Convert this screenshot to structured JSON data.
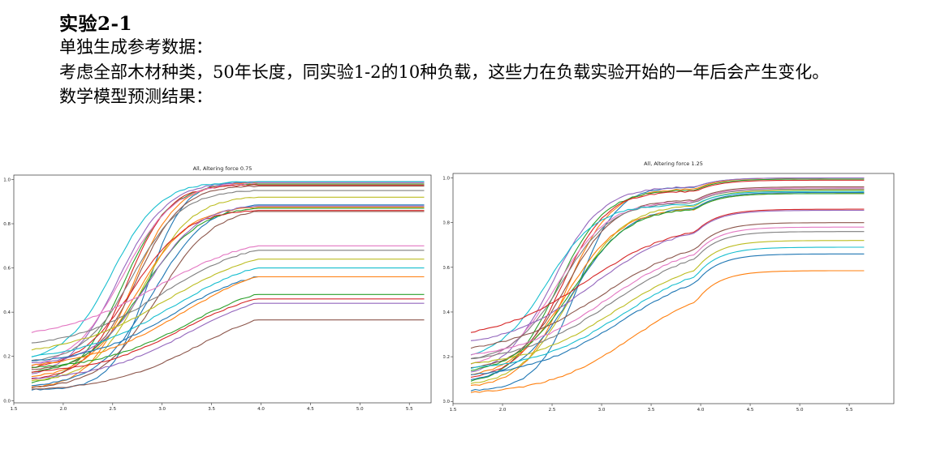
{
  "text": {
    "heading": "实验2-1",
    "line1": "单独生成参考数据：",
    "line2": "考虑全部木材种类，50年长度，同实验1-2的10种负载，这些力在负载实验开始的一年后会产生变化。",
    "line3": "数学模型预测结果："
  },
  "palette": [
    "#1f77b4",
    "#ff7f0e",
    "#2ca02c",
    "#d62728",
    "#9467bd",
    "#8c564b",
    "#e377c2",
    "#7f7f7f",
    "#bcbd22",
    "#17becf"
  ],
  "chart_data": [
    {
      "type": "line",
      "title": "All, Altering force 0.75",
      "xlabel": "",
      "ylabel": "",
      "xlim": [
        1.5,
        5.72
      ],
      "ylim": [
        -0.01,
        1.02
      ],
      "xticks": [
        "1.5",
        "2.0",
        "2.5",
        "3.0",
        "3.5",
        "4.0",
        "4.5",
        "5.0",
        "5.5"
      ],
      "yticks": [
        "0.0",
        "0.2",
        "0.4",
        "0.6",
        "0.8",
        "1.0"
      ],
      "x_start": 1.68,
      "x_end": 5.65,
      "step_x": 3.95,
      "legend": "none",
      "grid": false,
      "series": [
        {
          "start": 0.05,
          "final": 0.99,
          "mid": 2.85,
          "k": 5.5
        },
        {
          "start": 0.06,
          "final": 0.985,
          "mid": 2.7,
          "k": 4.5
        },
        {
          "start": 0.08,
          "final": 0.98,
          "mid": 2.6,
          "k": 4.2
        },
        {
          "start": 0.1,
          "final": 0.975,
          "mid": 2.65,
          "k": 4.8
        },
        {
          "start": 0.12,
          "final": 0.99,
          "mid": 2.55,
          "k": 4.0
        },
        {
          "start": 0.14,
          "final": 0.97,
          "mid": 2.75,
          "k": 4.5
        },
        {
          "start": 0.16,
          "final": 0.985,
          "mid": 2.6,
          "k": 3.8
        },
        {
          "start": 0.18,
          "final": 0.95,
          "mid": 2.7,
          "k": 4.0
        },
        {
          "start": 0.09,
          "final": 0.92,
          "mid": 2.8,
          "k": 4.0
        },
        {
          "start": 0.2,
          "final": 0.99,
          "mid": 2.5,
          "k": 4.2
        },
        {
          "start": 0.07,
          "final": 0.885,
          "mid": 2.9,
          "k": 3.6
        },
        {
          "start": 0.11,
          "final": 0.875,
          "mid": 2.75,
          "k": 3.8
        },
        {
          "start": 0.13,
          "final": 0.87,
          "mid": 2.8,
          "k": 3.5
        },
        {
          "start": 0.15,
          "final": 0.86,
          "mid": 2.7,
          "k": 3.6
        },
        {
          "start": 0.17,
          "final": 0.88,
          "mid": 2.85,
          "k": 3.8
        },
        {
          "start": 0.06,
          "final": 0.855,
          "mid": 2.95,
          "k": 3.5
        },
        {
          "start": 0.31,
          "final": 0.7,
          "mid": 2.95,
          "k": 2.0
        },
        {
          "start": 0.26,
          "final": 0.68,
          "mid": 3.0,
          "k": 2.2
        },
        {
          "start": 0.23,
          "final": 0.64,
          "mid": 3.05,
          "k": 2.0
        },
        {
          "start": 0.2,
          "final": 0.6,
          "mid": 3.1,
          "k": 2.1
        },
        {
          "start": 0.18,
          "final": 0.56,
          "mid": 3.1,
          "k": 2.3
        },
        {
          "start": 0.16,
          "final": 0.56,
          "mid": 3.2,
          "k": 2.0
        },
        {
          "start": 0.15,
          "final": 0.48,
          "mid": 3.25,
          "k": 2.2
        },
        {
          "start": 0.13,
          "final": 0.46,
          "mid": 3.2,
          "k": 2.2
        },
        {
          "start": 0.1,
          "final": 0.44,
          "mid": 3.25,
          "k": 2.1
        },
        {
          "start": 0.05,
          "final": 0.365,
          "mid": 3.35,
          "k": 2.2
        }
      ]
    },
    {
      "type": "line",
      "title": "All, Altering force 1.25",
      "xlabel": "",
      "ylabel": "",
      "xlim": [
        1.5,
        5.95
      ],
      "ylim": [
        -0.01,
        1.02
      ],
      "xticks": [
        "1.5",
        "2.0",
        "2.5",
        "3.0",
        "3.5",
        "4.0",
        "4.5",
        "5.0",
        "5.5"
      ],
      "yticks": [
        "0.0",
        "0.2",
        "0.4",
        "0.6",
        "0.8",
        "1.0"
      ],
      "x_start": 1.68,
      "x_end": 5.65,
      "step_x": 3.95,
      "legend": "none",
      "grid": false,
      "series": [
        {
          "start": 0.05,
          "final": 1.0,
          "mid": 2.75,
          "k": 5.0,
          "jump": 0.04
        },
        {
          "start": 0.07,
          "final": 1.0,
          "mid": 2.65,
          "k": 4.5,
          "jump": 0.05
        },
        {
          "start": 0.09,
          "final": 0.995,
          "mid": 2.55,
          "k": 4.2,
          "jump": 0.05
        },
        {
          "start": 0.11,
          "final": 0.99,
          "mid": 2.6,
          "k": 4.4,
          "jump": 0.05
        },
        {
          "start": 0.13,
          "final": 1.0,
          "mid": 2.5,
          "k": 4.0,
          "jump": 0.04
        },
        {
          "start": 0.15,
          "final": 0.96,
          "mid": 2.65,
          "k": 4.2,
          "jump": 0.06
        },
        {
          "start": 0.17,
          "final": 0.955,
          "mid": 2.55,
          "k": 3.8,
          "jump": 0.06
        },
        {
          "start": 0.19,
          "final": 0.95,
          "mid": 2.6,
          "k": 4.0,
          "jump": 0.06
        },
        {
          "start": 0.08,
          "final": 0.945,
          "mid": 2.7,
          "k": 3.8,
          "jump": 0.07
        },
        {
          "start": 0.21,
          "final": 0.94,
          "mid": 2.45,
          "k": 4.0,
          "jump": 0.06
        },
        {
          "start": 0.1,
          "final": 0.935,
          "mid": 2.7,
          "k": 3.6,
          "jump": 0.07
        },
        {
          "start": 0.12,
          "final": 0.93,
          "mid": 2.65,
          "k": 3.6,
          "jump": 0.07
        },
        {
          "start": 0.14,
          "final": 0.93,
          "mid": 2.7,
          "k": 3.5,
          "jump": 0.07
        },
        {
          "start": 0.31,
          "final": 0.86,
          "mid": 2.85,
          "k": 2.2,
          "jump": 0.1
        },
        {
          "start": 0.27,
          "final": 0.855,
          "mid": 2.9,
          "k": 2.3,
          "jump": 0.1
        },
        {
          "start": 0.24,
          "final": 0.8,
          "mid": 3.0,
          "k": 2.1,
          "jump": 0.12
        },
        {
          "start": 0.21,
          "final": 0.78,
          "mid": 3.05,
          "k": 2.2,
          "jump": 0.12
        },
        {
          "start": 0.19,
          "final": 0.76,
          "mid": 3.1,
          "k": 2.1,
          "jump": 0.12
        },
        {
          "start": 0.17,
          "final": 0.72,
          "mid": 3.15,
          "k": 2.2,
          "jump": 0.13
        },
        {
          "start": 0.15,
          "final": 0.69,
          "mid": 3.2,
          "k": 2.2,
          "jump": 0.13
        },
        {
          "start": 0.12,
          "final": 0.66,
          "mid": 3.2,
          "k": 2.1,
          "jump": 0.13
        },
        {
          "start": 0.04,
          "final": 0.585,
          "mid": 3.3,
          "k": 2.3,
          "jump": 0.14
        }
      ]
    }
  ]
}
